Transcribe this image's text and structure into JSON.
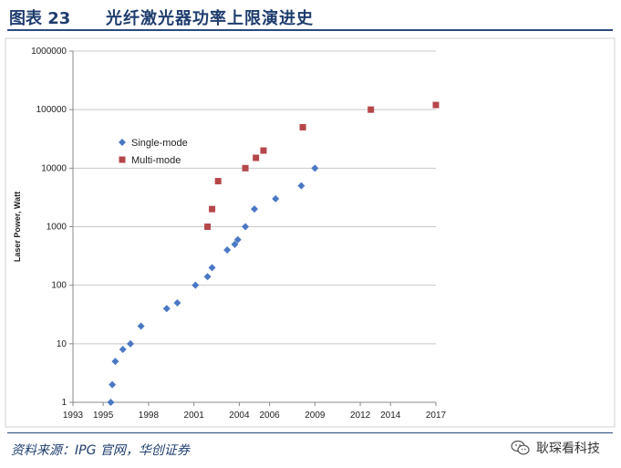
{
  "header": {
    "figure_label": "图表 23",
    "title": "光纤激光器功率上限演进史"
  },
  "footer": {
    "source": "资料来源：IPG 官网，华创证券",
    "watermark": "耿琛看科技",
    "watermark_icon": "wechat-icon"
  },
  "colors": {
    "title": "#1f3d6e",
    "rule": "#2b4a7c",
    "single_mode": "#4a78c4",
    "multi_mode": "#b5474b"
  },
  "chart_data": {
    "type": "scatter",
    "title": "",
    "xlabel": "",
    "ylabel": "Laser Power, Watt",
    "xscale": "linear",
    "yscale": "log",
    "xlim": [
      1993,
      2017
    ],
    "ylim": [
      1,
      1000000
    ],
    "x_ticks": [
      1993,
      1995,
      1998,
      2001,
      2004,
      2006,
      2009,
      2012,
      2014,
      2017
    ],
    "x_tick_labels": [
      "1993",
      "1995",
      "1998",
      "2001",
      "2004",
      "2006",
      "2009",
      "2012",
      "2014",
      "2017"
    ],
    "y_ticks": [
      1,
      10,
      100,
      1000,
      10000,
      100000,
      1000000
    ],
    "y_tick_labels": [
      "1",
      "10",
      "100",
      "1000",
      "10000",
      "100000",
      "1000000"
    ],
    "grid": "horizontal",
    "legend_position": "upper-left",
    "series": [
      {
        "name": "Single-mode",
        "marker": "diamond",
        "color": "#4a78c4",
        "points": [
          {
            "x": 1995.5,
            "y": 1
          },
          {
            "x": 1995.6,
            "y": 2
          },
          {
            "x": 1995.8,
            "y": 5
          },
          {
            "x": 1996.3,
            "y": 8
          },
          {
            "x": 1996.8,
            "y": 10
          },
          {
            "x": 1997.5,
            "y": 20
          },
          {
            "x": 1999.2,
            "y": 40
          },
          {
            "x": 1999.9,
            "y": 50
          },
          {
            "x": 2001.1,
            "y": 100
          },
          {
            "x": 2001.9,
            "y": 140
          },
          {
            "x": 2002.2,
            "y": 200
          },
          {
            "x": 2003.2,
            "y": 400
          },
          {
            "x": 2003.7,
            "y": 500
          },
          {
            "x": 2003.9,
            "y": 600
          },
          {
            "x": 2004.4,
            "y": 1000
          },
          {
            "x": 2005.0,
            "y": 2000
          },
          {
            "x": 2006.4,
            "y": 3000
          },
          {
            "x": 2008.1,
            "y": 5000
          },
          {
            "x": 2009.0,
            "y": 10000
          }
        ]
      },
      {
        "name": "Multi-mode",
        "marker": "square",
        "color": "#b5474b",
        "points": [
          {
            "x": 2001.9,
            "y": 1000
          },
          {
            "x": 2002.2,
            "y": 2000
          },
          {
            "x": 2002.6,
            "y": 6000
          },
          {
            "x": 2004.4,
            "y": 10000
          },
          {
            "x": 2005.1,
            "y": 15000
          },
          {
            "x": 2005.6,
            "y": 20000
          },
          {
            "x": 2008.2,
            "y": 50000
          },
          {
            "x": 2012.7,
            "y": 100000
          },
          {
            "x": 2017.0,
            "y": 120000
          }
        ]
      }
    ]
  }
}
